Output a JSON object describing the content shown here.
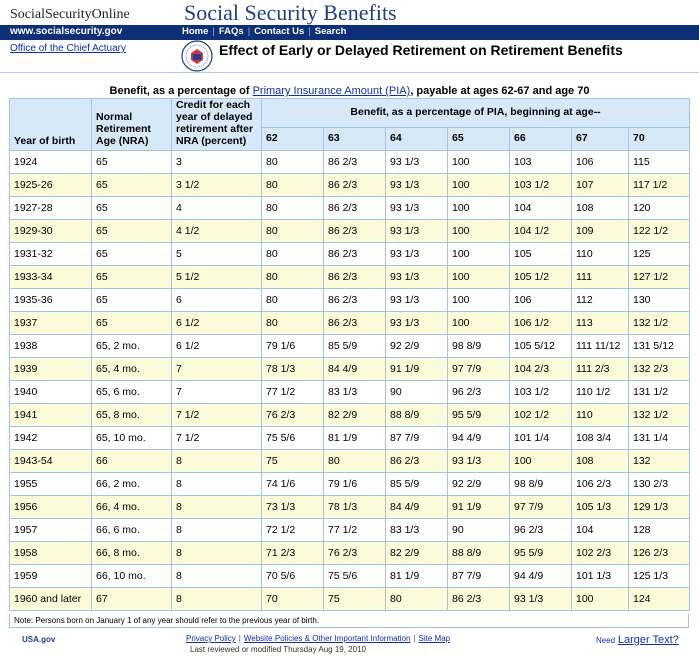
{
  "header": {
    "brand": "SocialSecurityOnline",
    "site_title": "Social Security Benefits",
    "url": "www.socialsecurity.gov",
    "nav": [
      "Home",
      "FAQs",
      "Contact Us",
      "Search"
    ],
    "office_link": "Office of the Chief Actuary",
    "page_title": "Effect of Early or Delayed Retirement on Retirement Benefits"
  },
  "caption": {
    "prefix": "Benefit, as a percentage of ",
    "link": "Primary Insurance Amount (PIA)",
    "suffix": ", payable at ages 62-67 and age 70"
  },
  "table": {
    "col_year": "Year of birth",
    "col_nra": "Normal Retirement Age (NRA)",
    "col_credit": "Credit for each year of delayed retirement after NRA (percent)",
    "group_header": "Benefit, as a percentage of PIA, beginning at age--",
    "ages": [
      "62",
      "63",
      "64",
      "65",
      "66",
      "67",
      "70"
    ],
    "rows": [
      [
        "1924",
        "65",
        "3",
        "80",
        "86 2/3",
        "93 1/3",
        "100",
        "103",
        "106",
        "115"
      ],
      [
        "1925-26",
        "65",
        "3 1/2",
        "80",
        "86 2/3",
        "93 1/3",
        "100",
        "103 1/2",
        "107",
        "117 1/2"
      ],
      [
        "1927-28",
        "65",
        "4",
        "80",
        "86 2/3",
        "93 1/3",
        "100",
        "104",
        "108",
        "120"
      ],
      [
        "1929-30",
        "65",
        "4 1/2",
        "80",
        "86 2/3",
        "93 1/3",
        "100",
        "104 1/2",
        "109",
        "122 1/2"
      ],
      [
        "1931-32",
        "65",
        "5",
        "80",
        "86 2/3",
        "93 1/3",
        "100",
        "105",
        "110",
        "125"
      ],
      [
        "1933-34",
        "65",
        "5 1/2",
        "80",
        "86 2/3",
        "93 1/3",
        "100",
        "105 1/2",
        "111",
        "127 1/2"
      ],
      [
        "1935-36",
        "65",
        "6",
        "80",
        "86 2/3",
        "93 1/3",
        "100",
        "106",
        "112",
        "130"
      ],
      [
        "1937",
        "65",
        "6 1/2",
        "80",
        "86 2/3",
        "93 1/3",
        "100",
        "106 1/2",
        "113",
        "132 1/2"
      ],
      [
        "1938",
        "65, 2 mo.",
        "6 1/2",
        "79 1/6",
        "85 5/9",
        "92 2/9",
        "98 8/9",
        "105 5/12",
        "111 11/12",
        "131 5/12"
      ],
      [
        "1939",
        "65, 4 mo.",
        "7",
        "78 1/3",
        "84 4/9",
        "91 1/9",
        "97 7/9",
        "104 2/3",
        "111 2/3",
        "132 2/3"
      ],
      [
        "1940",
        "65, 6 mo.",
        "7",
        "77 1/2",
        "83 1/3",
        "90",
        "96 2/3",
        "103 1/2",
        "110 1/2",
        "131 1/2"
      ],
      [
        "1941",
        "65, 8 mo.",
        "7 1/2",
        "76 2/3",
        "82 2/9",
        "88 8/9",
        "95 5/9",
        "102 1/2",
        "110",
        "132 1/2"
      ],
      [
        "1942",
        "65, 10 mo.",
        "7 1/2",
        "75 5/6",
        "81 1/9",
        "87 7/9",
        "94 4/9",
        "101 1/4",
        "108 3/4",
        "131 1/4"
      ],
      [
        "1943-54",
        "66",
        "8",
        "75",
        "80",
        "86 2/3",
        "93 1/3",
        "100",
        "108",
        "132"
      ],
      [
        "1955",
        "66, 2 mo.",
        "8",
        "74 1/6",
        "79 1/6",
        "85 5/9",
        "92 2/9",
        "98 8/9",
        "106 2/3",
        "130 2/3"
      ],
      [
        "1956",
        "66, 4 mo.",
        "8",
        "73 1/3",
        "78 1/3",
        "84 4/9",
        "91 1/9",
        "97 7/9",
        "105 1/3",
        "129 1/3"
      ],
      [
        "1957",
        "66, 6 mo.",
        "8",
        "72 1/2",
        "77 1/2",
        "83 1/3",
        "90",
        "96 2/3",
        "104",
        "128"
      ],
      [
        "1958",
        "66, 8 mo.",
        "8",
        "71 2/3",
        "76 2/3",
        "82 2/9",
        "88 8/9",
        "95 5/9",
        "102 2/3",
        "126 2/3"
      ],
      [
        "1959",
        "66, 10 mo.",
        "8",
        "70 5/6",
        "75 5/6",
        "81 1/9",
        "87 7/9",
        "94 4/9",
        "101 1/3",
        "125 1/3"
      ],
      [
        "1960 and later",
        "67",
        "8",
        "70",
        "75",
        "80",
        "86 2/3",
        "93 1/3",
        "100",
        "124"
      ]
    ],
    "note": "Note: Persons born on January 1 of any year should refer to the previous year of birth."
  },
  "footer": {
    "usa": "USA.gov",
    "links": [
      "Privacy Policy",
      "Website Policies & Other Important Information",
      "Site Map"
    ],
    "updated": "Last reviewed or modified Thursday Aug 19, 2010",
    "need": "Need",
    "larger": "Larger Text?"
  },
  "colors": {
    "nav_bar": "#0d2f78",
    "header_cell": "#d7e9f8",
    "alt_row": "#fbfad9",
    "border": "#9dc6e8",
    "link": "#1030a8"
  }
}
